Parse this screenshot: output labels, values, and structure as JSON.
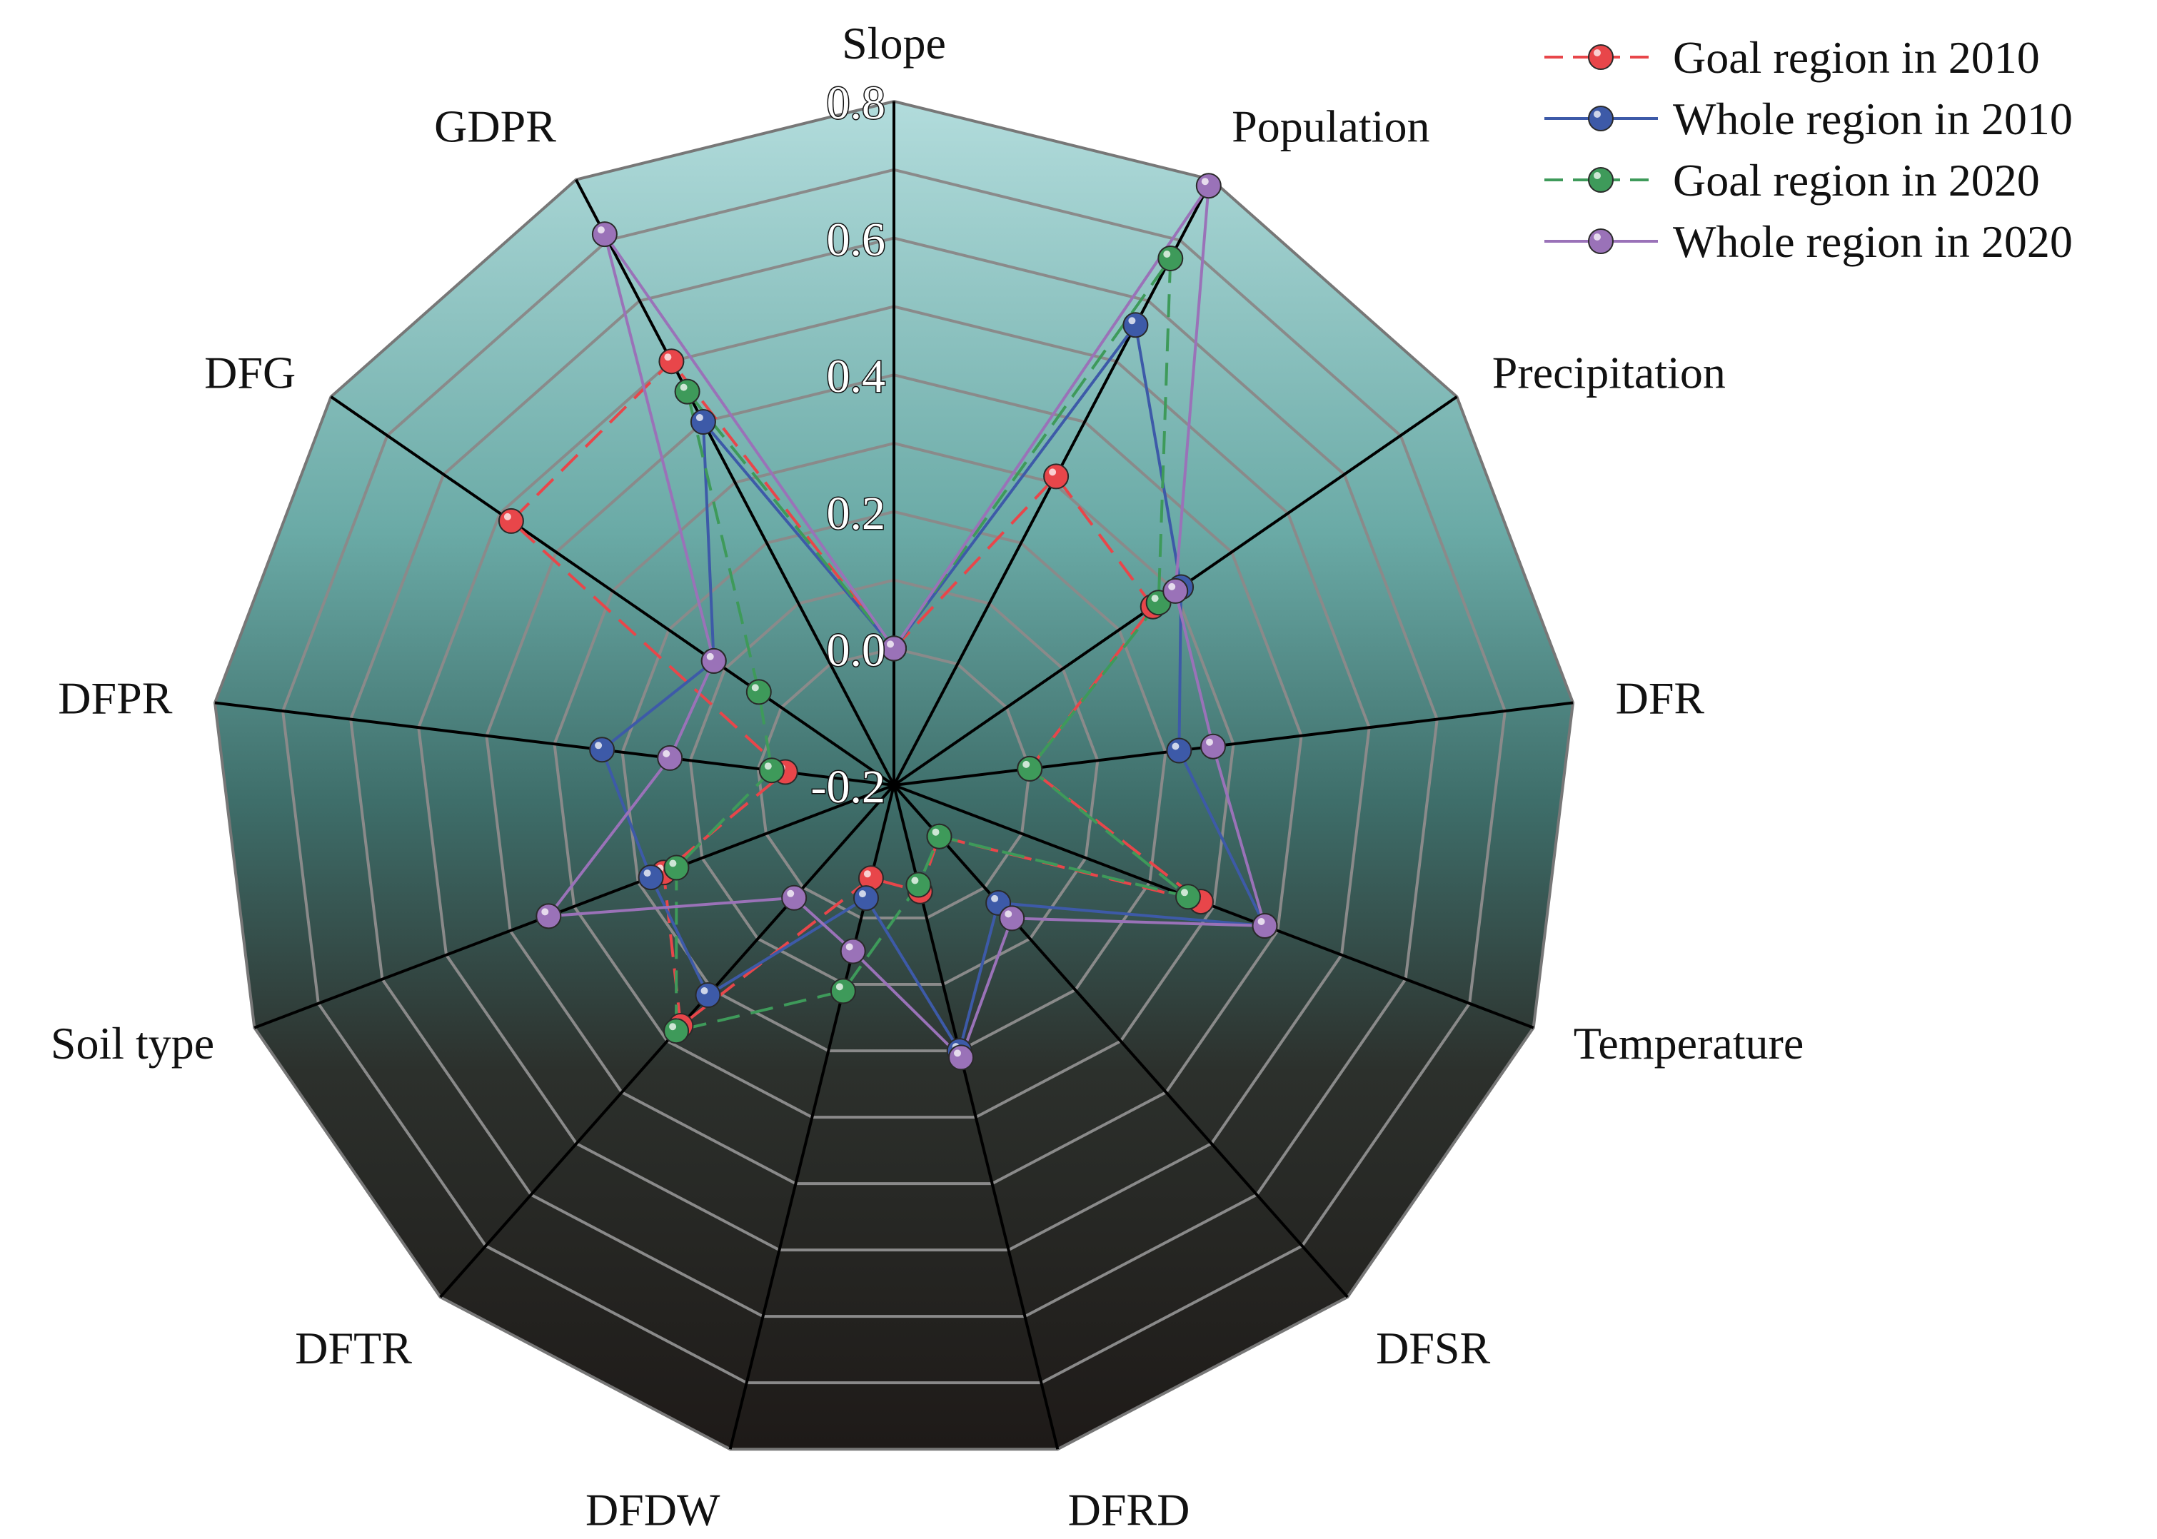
{
  "chart_data": {
    "type": "radar",
    "title": "",
    "axes": [
      "Slope",
      "Population",
      "Precipitation",
      "DFR",
      "Temperature",
      "DFSR",
      "DFRD",
      "DFDW",
      "DFTR",
      "Soil type",
      "DFPR",
      "DFG",
      "GDPR"
    ],
    "rlim": [
      -0.2,
      0.8
    ],
    "ticks": [
      "-0.2",
      "0.0",
      "0.2",
      "0.4",
      "0.6",
      "0.8"
    ],
    "tick_values": [
      -0.2,
      0.0,
      0.2,
      0.4,
      0.6,
      0.8
    ],
    "minor_rings": [
      0.0,
      0.1,
      0.2,
      0.3,
      0.4,
      0.5,
      0.6,
      0.7
    ],
    "grid": true,
    "legend_position": "top-right",
    "series": [
      {
        "name": "Goal region in 2010",
        "color": "#e8464a",
        "dashed": true,
        "values": [
          0.0,
          0.31,
          0.26,
          0.0,
          0.28,
          -0.1,
          -0.04,
          -0.06,
          0.27,
          0.16,
          -0.04,
          0.48,
          0.5
        ]
      },
      {
        "name": "Whole region in 2010",
        "color": "#3d5aa8",
        "dashed": false,
        "values": [
          0.0,
          0.56,
          0.31,
          0.22,
          0.38,
          0.03,
          0.2,
          -0.03,
          0.21,
          0.18,
          0.23,
          0.12,
          0.4
        ]
      },
      {
        "name": "Goal region in 2020",
        "color": "#3e9a5a",
        "dashed": true,
        "values": [
          0.0,
          0.67,
          0.27,
          0.0,
          0.26,
          -0.1,
          -0.05,
          0.11,
          0.28,
          0.14,
          -0.02,
          0.04,
          0.45
        ]
      },
      {
        "name": "Whole region in 2020",
        "color": "#9a72b8",
        "dashed": false,
        "values": [
          0.0,
          0.79,
          0.3,
          0.27,
          0.38,
          0.06,
          0.21,
          0.05,
          0.02,
          0.34,
          0.13,
          0.12,
          0.71
        ]
      }
    ]
  }
}
